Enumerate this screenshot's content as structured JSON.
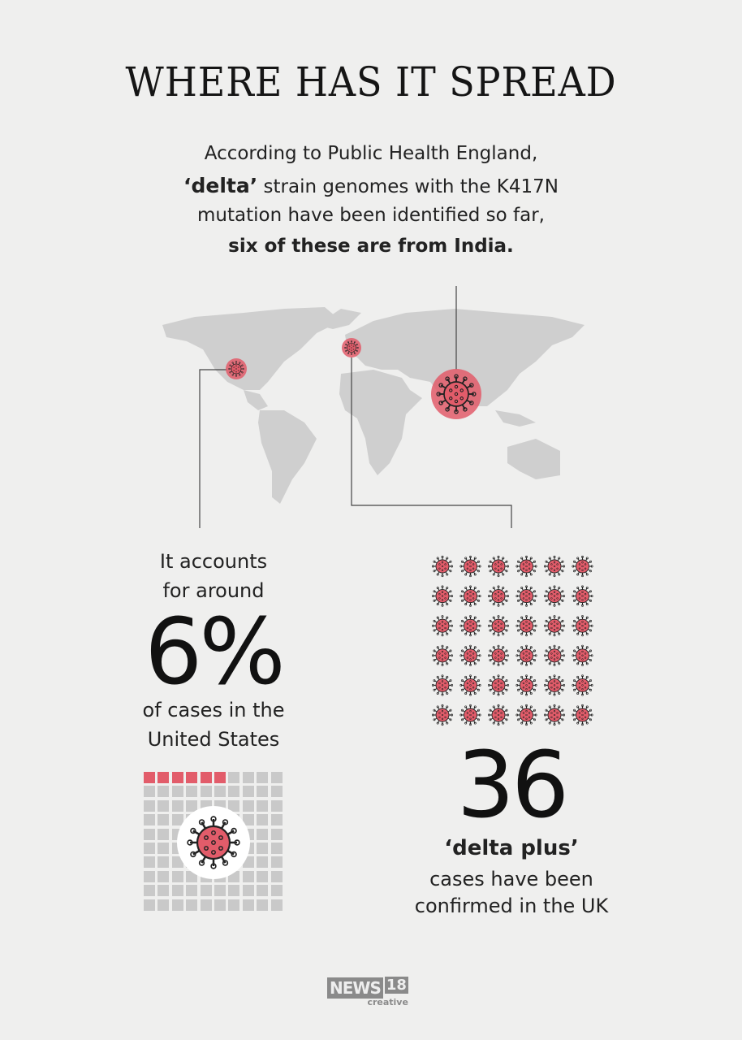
{
  "title": "WHERE HAS IT SPREAD",
  "intro": {
    "line1": "According to Public Health England,",
    "line2_bold": "‘delta’",
    "line2_rest": " strain genomes with the K417N",
    "line3": "mutation have been identified so far,",
    "line4_bold": "six of these are from India."
  },
  "map": {
    "markers": [
      "United States",
      "United Kingdom",
      "India"
    ],
    "marker_color": "#e25c6a"
  },
  "left": {
    "line1": "It accounts",
    "line2": "for around",
    "value": "6%",
    "line3": "of cases in the",
    "line4": "United States",
    "grid_highlighted_fraction": 0.06
  },
  "right": {
    "icon_count": 36,
    "value": "36",
    "label_bold": "‘delta plus’",
    "line1": "cases have been",
    "line2": "confirmed in the UK"
  },
  "logo": {
    "brand": "NEWS",
    "number": "18",
    "sub": "creative"
  },
  "colors": {
    "accent": "#e25c6a",
    "grid": "#c9c9c9",
    "map": "#cfcfcf"
  }
}
